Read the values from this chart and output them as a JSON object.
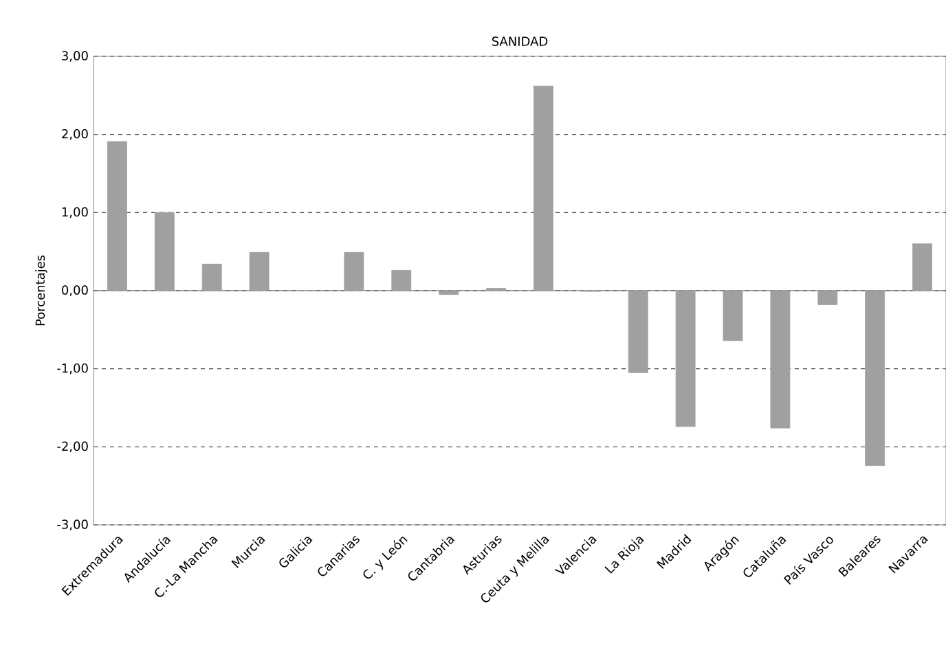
{
  "chart_data": {
    "type": "bar",
    "title": "SANIDAD",
    "ylabel": "Porcentajes",
    "categories": [
      "Extremadura",
      "Andalucía",
      "C.-La Mancha",
      "Murcia",
      "Galicia",
      "Canarias",
      "C. y León",
      "Cantabria",
      "Asturias",
      "Ceuta y Melilla",
      "Valencia",
      "La Rioja",
      "Madrid",
      "Aragón",
      "Cataluña",
      "País Vasco",
      "Baleares",
      "Navarra"
    ],
    "values": [
      1.91,
      1.0,
      0.34,
      0.49,
      0.0,
      0.49,
      0.26,
      -0.05,
      0.03,
      2.62,
      -0.01,
      -1.05,
      -1.74,
      -0.64,
      -1.76,
      -0.18,
      -2.24,
      0.6
    ],
    "color": "#a0a0a0",
    "ylim": [
      -3,
      3
    ],
    "yticks": [
      {
        "value": -3,
        "label": "-3,00"
      },
      {
        "value": -2,
        "label": "-2,00"
      },
      {
        "value": -1,
        "label": "-1,00"
      },
      {
        "value": 0,
        "label": "0,00"
      },
      {
        "value": 1,
        "label": "1,00"
      },
      {
        "value": 2,
        "label": "2,00"
      },
      {
        "value": 3,
        "label": "3,00"
      }
    ],
    "grid": "y"
  }
}
